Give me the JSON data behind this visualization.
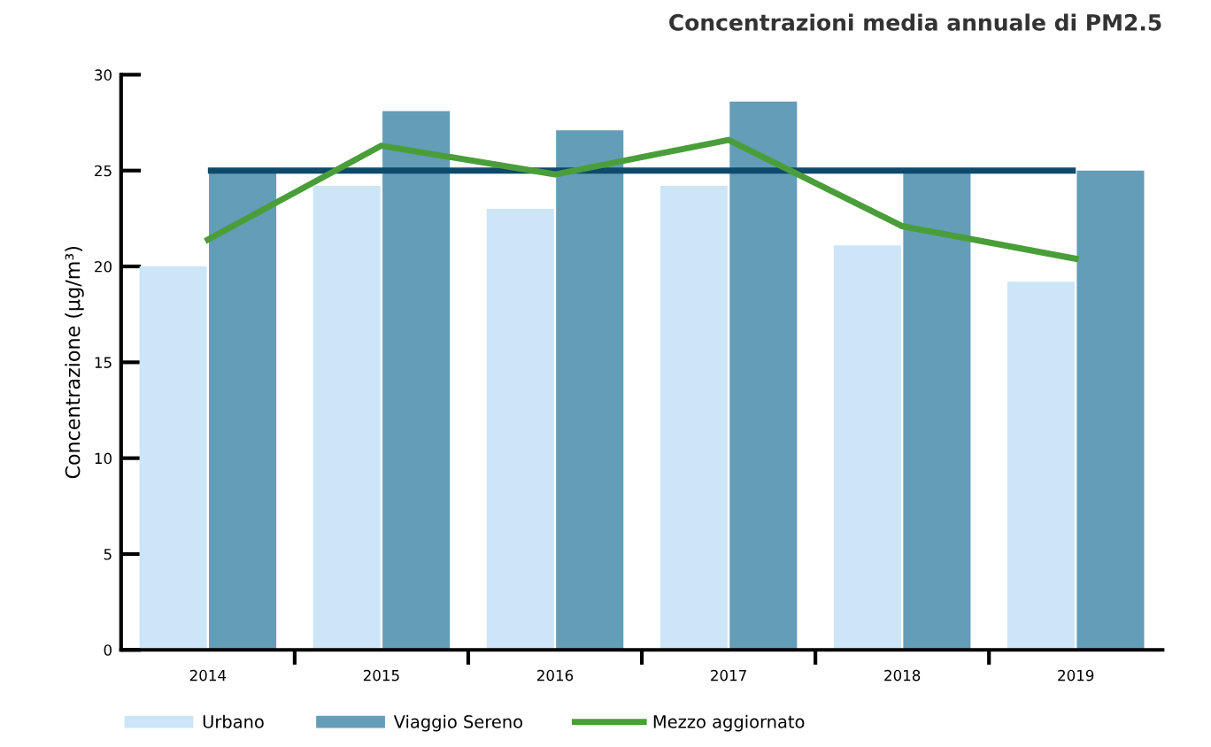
{
  "chart_data": {
    "type": "bar",
    "title": "Concentrazioni media annuale di PM2.5",
    "ylabel": "Concentrazione (μg/m³)",
    "categories": [
      "2014",
      "2015",
      "2016",
      "2017",
      "2018",
      "2019"
    ],
    "series": [
      {
        "name": "Urbano",
        "color": "#cce6f7",
        "values": [
          20.0,
          24.2,
          23.0,
          24.2,
          21.1,
          19.2
        ]
      },
      {
        "name": "Viaggio Sereno",
        "color": "#649db8",
        "values": [
          25.0,
          28.1,
          27.1,
          28.6,
          25.0,
          25.0
        ]
      },
      {
        "name": "Mezzo aggiornato",
        "color": "#4a9e3a",
        "type": "line",
        "values": [
          21.4,
          26.3,
          24.8,
          26.6,
          22.1,
          20.4
        ]
      }
    ],
    "ref_lines": [
      {
        "axis": "y",
        "value": 25,
        "color": "#0d4a6b"
      }
    ],
    "ylim": [
      0,
      30
    ],
    "yticks": [
      0,
      5,
      10,
      15,
      20,
      25,
      30
    ],
    "grid": false,
    "legend": "bottom"
  }
}
